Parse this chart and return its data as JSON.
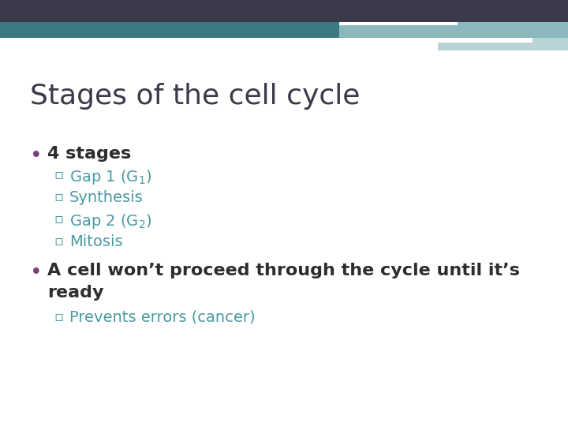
{
  "title": "Stages of the cell cycle",
  "title_fontsize": 26,
  "title_color": "#3a3a4a",
  "title_font": "DejaVu Sans",
  "bg_color": "#ffffff",
  "header_dark_color": "#3a3a4a",
  "header_teal_color": "#3a7a80",
  "header_light_teal": "#8ab8bc",
  "header_pale_teal": "#b8d4d6",
  "bullet_color": "#7b3f7b",
  "sub_bullet_color": "#4a9aa0",
  "bullet_text_color": "#2d2d2d",
  "body_fontsize": 16,
  "sub_fontsize": 14,
  "bullet1": "4 stages",
  "sub_bullets1": [
    "Gap 1 (G$_1$)",
    "Synthesis",
    "Gap 2 (G$_2$)",
    "Mitosis"
  ],
  "bullet2_part1": "A cell won’t proceed through the cycle until it’s",
  "bullet2_part2": "ready",
  "sub_bullets2": [
    "Prevents errors (cancer)"
  ]
}
